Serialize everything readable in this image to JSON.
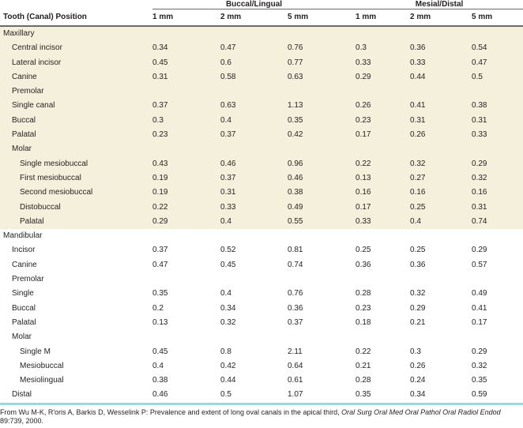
{
  "header": {
    "stub": "Tooth (Canal) Position",
    "groups": [
      "Buccal/Lingual",
      "Mesial/Distal"
    ],
    "subcols": [
      "1 mm",
      "2 mm",
      "5 mm",
      "1 mm",
      "2 mm",
      "5 mm"
    ]
  },
  "rows": [
    {
      "label": "Maxillary",
      "level": 0,
      "section": "max",
      "values": []
    },
    {
      "label": "Central incisor",
      "level": 1,
      "section": "max",
      "values": [
        "0.34",
        "0.47",
        "0.76",
        "0.3",
        "0.36",
        "0.54"
      ]
    },
    {
      "label": "Lateral incisor",
      "level": 1,
      "section": "max",
      "values": [
        "0.45",
        "0.6",
        "0.77",
        "0.33",
        "0.33",
        "0.47"
      ]
    },
    {
      "label": "Canine",
      "level": 1,
      "section": "max",
      "values": [
        "0.31",
        "0.58",
        "0.63",
        "0.29",
        "0.44",
        "0.5"
      ]
    },
    {
      "label": "Premolar",
      "level": 1,
      "section": "max",
      "values": []
    },
    {
      "label": "Single canal",
      "level": 1,
      "section": "max",
      "values": [
        "0.37",
        "0.63",
        "1.13",
        "0.26",
        "0.41",
        "0.38"
      ]
    },
    {
      "label": "Buccal",
      "level": 1,
      "section": "max",
      "values": [
        "0.3",
        "0.4",
        "0.35",
        "0.23",
        "0.31",
        "0.31"
      ]
    },
    {
      "label": "Palatal",
      "level": 1,
      "section": "max",
      "values": [
        "0.23",
        "0.37",
        "0.42",
        "0.17",
        "0.26",
        "0.33"
      ]
    },
    {
      "label": "Molar",
      "level": 1,
      "section": "max",
      "values": []
    },
    {
      "label": "Single mesiobuccal",
      "level": 2,
      "section": "max",
      "values": [
        "0.43",
        "0.46",
        "0.96",
        "0.22",
        "0.32",
        "0.29"
      ]
    },
    {
      "label": "First mesiobuccal",
      "level": 2,
      "section": "max",
      "values": [
        "0.19",
        "0.37",
        "0.46",
        "0.13",
        "0.27",
        "0.32"
      ]
    },
    {
      "label": "Second mesiobuccal",
      "level": 2,
      "section": "max",
      "values": [
        "0.19",
        "0.31",
        "0.38",
        "0.16",
        "0.16",
        "0.16"
      ]
    },
    {
      "label": "Distobuccal",
      "level": 2,
      "section": "max",
      "values": [
        "0.22",
        "0.33",
        "0.49",
        "0.17",
        "0.25",
        "0.31"
      ]
    },
    {
      "label": "Palatal",
      "level": 2,
      "section": "max",
      "values": [
        "0.29",
        "0.4",
        "0.55",
        "0.33",
        "0.4",
        "0.74"
      ]
    },
    {
      "label": "Mandibular",
      "level": 0,
      "section": "mand",
      "values": []
    },
    {
      "label": "Incisor",
      "level": 1,
      "section": "mand",
      "values": [
        "0.37",
        "0.52",
        "0.81",
        "0.25",
        "0.25",
        "0.29"
      ]
    },
    {
      "label": "Canine",
      "level": 1,
      "section": "mand",
      "values": [
        "0.47",
        "0.45",
        "0.74",
        "0.36",
        "0.36",
        "0.57"
      ]
    },
    {
      "label": "Premolar",
      "level": 1,
      "section": "mand",
      "values": []
    },
    {
      "label": "Single",
      "level": 1,
      "section": "mand",
      "values": [
        "0.35",
        "0.4",
        "0.76",
        "0.28",
        "0.32",
        "0.49"
      ]
    },
    {
      "label": "Buccal",
      "level": 1,
      "section": "mand",
      "values": [
        "0.2",
        "0.34",
        "0.36",
        "0.23",
        "0.29",
        "0.41"
      ]
    },
    {
      "label": "Palatal",
      "level": 1,
      "section": "mand",
      "values": [
        "0.13",
        "0.32",
        "0.37",
        "0.18",
        "0.21",
        "0.17"
      ]
    },
    {
      "label": "Molar",
      "level": 1,
      "section": "mand",
      "values": []
    },
    {
      "label": "Single M",
      "level": 2,
      "section": "mand",
      "values": [
        "0.45",
        "0.8",
        "2.11",
        "0.22",
        "0.3",
        "0.29"
      ]
    },
    {
      "label": "Mesiobuccal",
      "level": 2,
      "section": "mand",
      "values": [
        "0.4",
        "0.42",
        "0.64",
        "0.21",
        "0.26",
        "0.32"
      ]
    },
    {
      "label": "Mesiolingual",
      "level": 2,
      "section": "mand",
      "values": [
        "0.38",
        "0.44",
        "0.61",
        "0.28",
        "0.24",
        "0.35"
      ]
    },
    {
      "label": "Distal",
      "level": 1,
      "section": "mand",
      "values": [
        "0.46",
        "0.5",
        "1.07",
        "0.35",
        "0.34",
        "0.59"
      ]
    }
  ],
  "source": {
    "prefix": "From Wu M-K, R'oris A, Barkis D, Wesselink P: Prevalence and extent of long oval canals in the apical third, ",
    "journal": "Oral Surg Oral Med Oral Pathol Oral Radiol Endod",
    "suffix": " 89:739, 2000."
  },
  "colors": {
    "maxillary_band": "#f4f0dc",
    "bottom_rule": "#9fd6e6",
    "text": "#231f20"
  }
}
